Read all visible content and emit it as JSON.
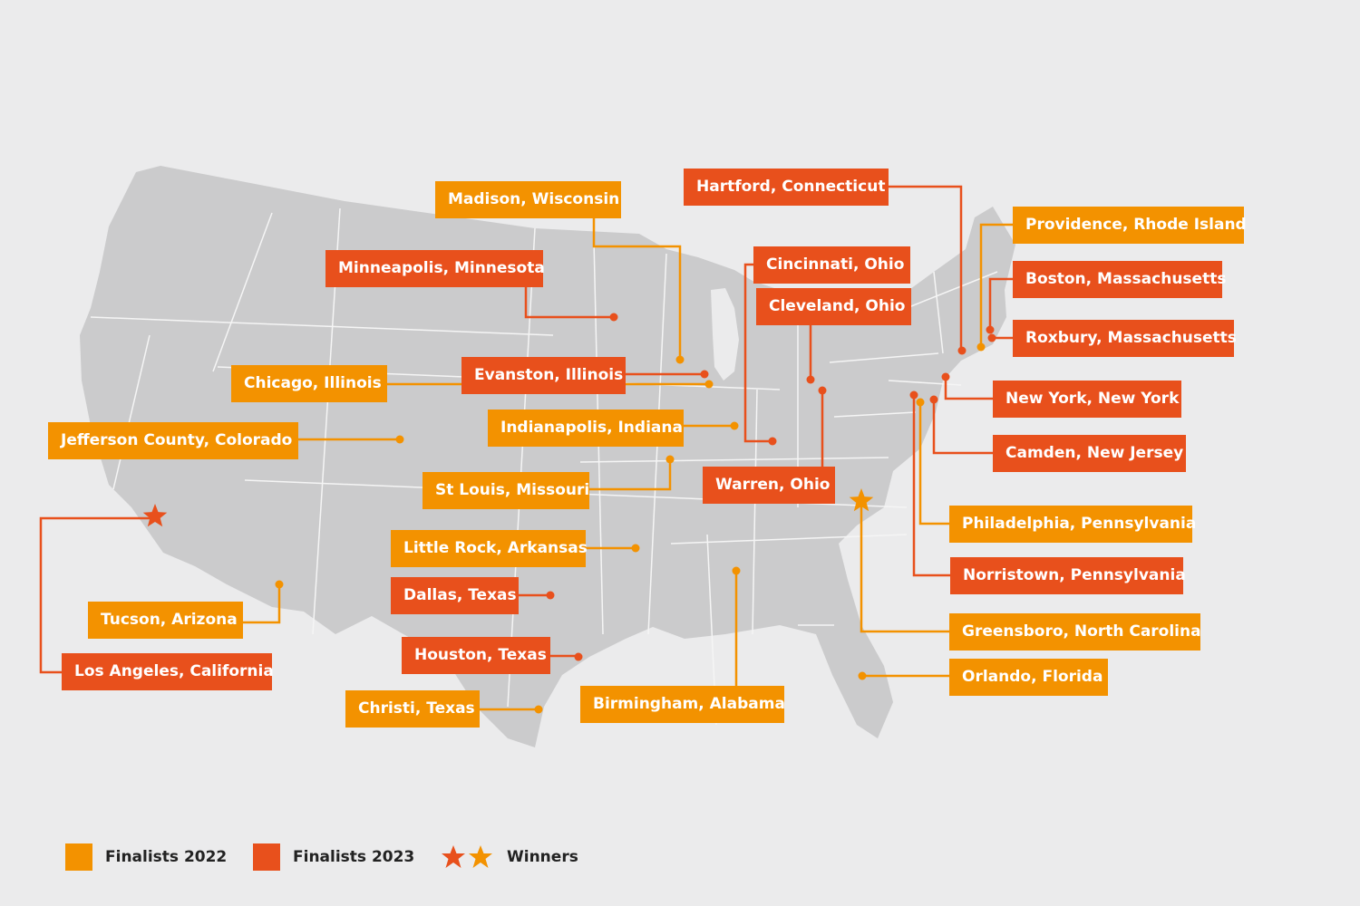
{
  "colors": {
    "finalists_2022": "#f39200",
    "finalists_2023": "#e8501c",
    "map_fill": "#cbcbcc",
    "map_border": "#f5f5f5",
    "background": "#ebebec"
  },
  "legend": {
    "finalists_2022": "Finalists  2022",
    "finalists_2023": "Finalists  2023",
    "winners": "Winners"
  },
  "locations": [
    {
      "name": "Madison, Wisconsin",
      "year": "2022",
      "winner": false
    },
    {
      "name": "Hartford, Connecticut",
      "year": "2023",
      "winner": false
    },
    {
      "name": "Providence, Rhode Island",
      "year": "2022",
      "winner": false
    },
    {
      "name": "Minneapolis, Minnesota",
      "year": "2023",
      "winner": false
    },
    {
      "name": "Cincinnati, Ohio",
      "year": "2023",
      "winner": false
    },
    {
      "name": "Boston, Massachusetts",
      "year": "2023",
      "winner": false
    },
    {
      "name": "Cleveland, Ohio",
      "year": "2023",
      "winner": false
    },
    {
      "name": "Roxbury, Massachusetts",
      "year": "2023",
      "winner": false
    },
    {
      "name": "Chicago, Illinois",
      "year": "2022",
      "winner": false
    },
    {
      "name": "Evanston, Illinois",
      "year": "2023",
      "winner": false
    },
    {
      "name": "New York, New York",
      "year": "2023",
      "winner": false
    },
    {
      "name": "Jefferson County, Colorado",
      "year": "2022",
      "winner": false
    },
    {
      "name": "Indianapolis, Indiana",
      "year": "2022",
      "winner": false
    },
    {
      "name": "Camden, New Jersey",
      "year": "2023",
      "winner": false
    },
    {
      "name": "St Louis, Missouri",
      "year": "2022",
      "winner": false
    },
    {
      "name": "Warren, Ohio",
      "year": "2023",
      "winner": false
    },
    {
      "name": "Philadelphia, Pennsylvania",
      "year": "2022",
      "winner": false
    },
    {
      "name": "Little Rock, Arkansas",
      "year": "2022",
      "winner": false
    },
    {
      "name": "Norristown, Pennsylvania",
      "year": "2023",
      "winner": false
    },
    {
      "name": "Dallas, Texas",
      "year": "2023",
      "winner": false
    },
    {
      "name": "Tucson, Arizona",
      "year": "2022",
      "winner": false
    },
    {
      "name": "Greensboro, North Carolina",
      "year": "2022",
      "winner": true
    },
    {
      "name": "Houston, Texas",
      "year": "2023",
      "winner": false
    },
    {
      "name": "Los Angeles, California",
      "year": "2023",
      "winner": true
    },
    {
      "name": "Orlando, Florida",
      "year": "2022",
      "winner": false
    },
    {
      "name": "Christi, Texas",
      "year": "2022",
      "winner": false
    },
    {
      "name": "Birmingham, Alabama",
      "year": "2022",
      "winner": false
    }
  ]
}
